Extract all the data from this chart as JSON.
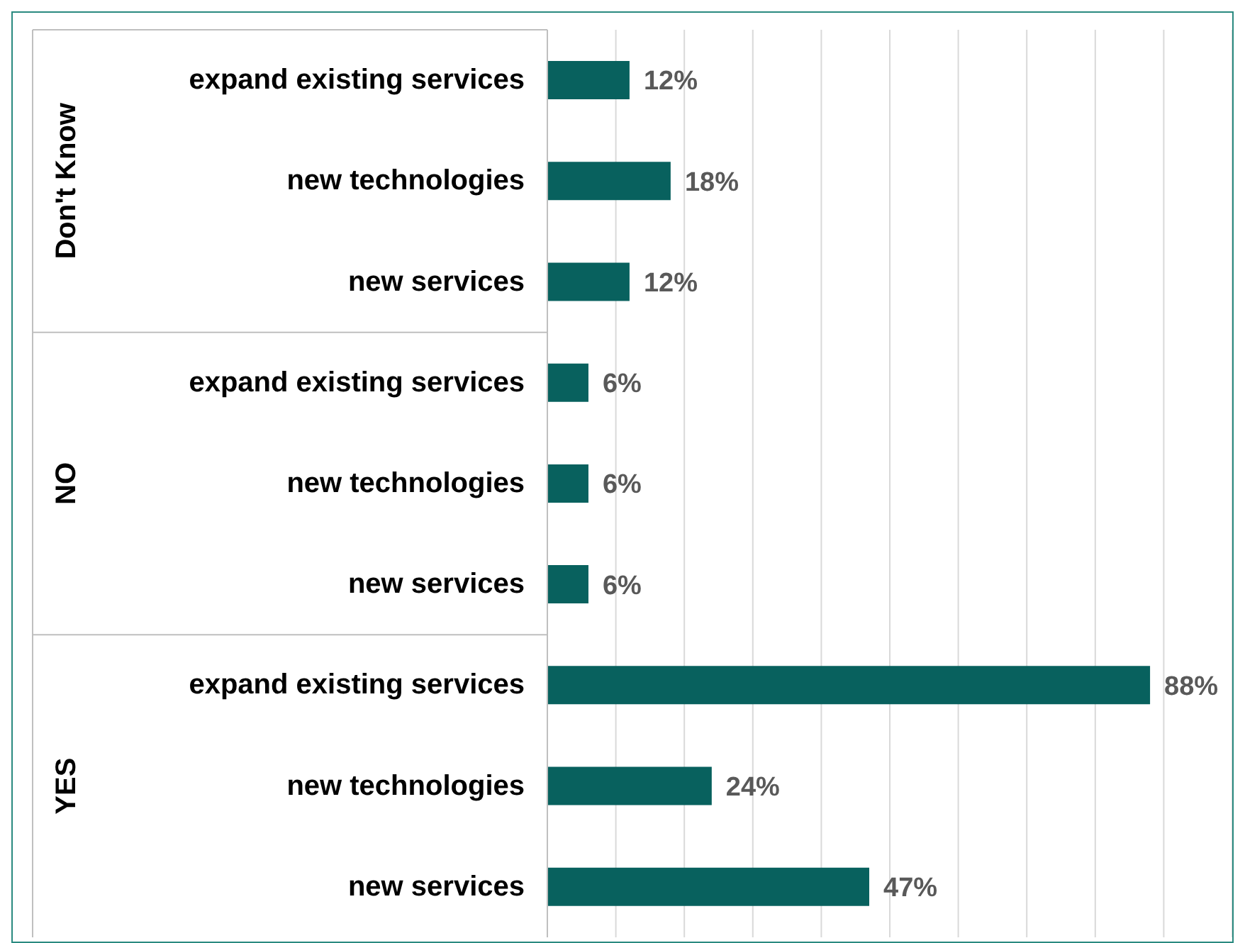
{
  "chart_data": {
    "type": "bar",
    "orientation": "horizontal",
    "categories": [
      "expand existing services",
      "new technologies",
      "new services",
      "expand existing services",
      "new technologies",
      "new services",
      "expand existing services",
      "new technologies",
      "new services"
    ],
    "values": [
      12,
      18,
      12,
      6,
      6,
      6,
      88,
      24,
      47
    ],
    "value_labels": [
      "12%",
      "18%",
      "12%",
      "6%",
      "6%",
      "6%",
      "88%",
      "24%",
      "47%"
    ],
    "color": "#08615e",
    "xlim": [
      0,
      100
    ],
    "xticks": [
      {
        "value": 0,
        "label": null
      },
      {
        "value": 10,
        "label": null
      },
      {
        "value": 20,
        "label": null
      },
      {
        "value": 30,
        "label": null
      },
      {
        "value": 40,
        "label": null
      },
      {
        "value": 50,
        "label": null
      },
      {
        "value": 60,
        "label": null
      },
      {
        "value": 70,
        "label": null
      },
      {
        "value": 80,
        "label": null
      },
      {
        "value": 90,
        "label": null
      },
      {
        "value": 100,
        "label": null
      }
    ],
    "grid": "x",
    "tick_labels": "y",
    "annotations": [
      "Don't Know",
      "NO",
      "YES"
    ]
  }
}
